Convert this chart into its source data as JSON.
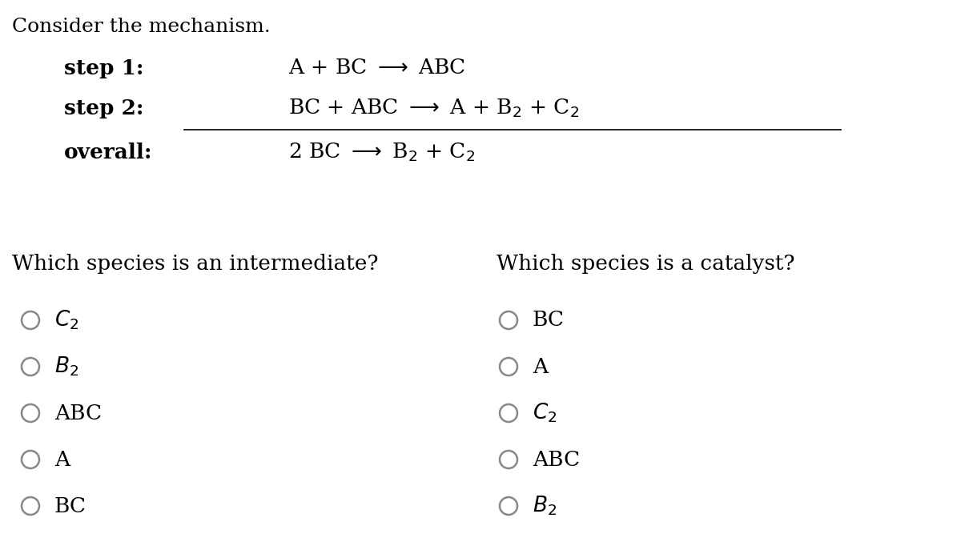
{
  "title": "Consider the mechanism.",
  "background_color": "#ffffff",
  "text_color": "#000000",
  "circle_color": "#888888",
  "step1_label": "step 1:",
  "step2_label": "step 2:",
  "overall_label": "overall:",
  "question1": "Which species is an intermediate?",
  "question2": "Which species is a catalyst?",
  "options_left_display": [
    "$C_2$",
    "$B_2$",
    "ABC",
    "A",
    "BC"
  ],
  "options_right_display": [
    "BC",
    "A",
    "$C_2$",
    "ABC",
    "$B_2$"
  ],
  "label_fontsize": 19,
  "equation_fontsize": 19,
  "question_fontsize": 19,
  "option_fontsize": 19,
  "title_fontsize": 18,
  "fig_width": 12.0,
  "fig_height": 6.87,
  "dpi": 100
}
